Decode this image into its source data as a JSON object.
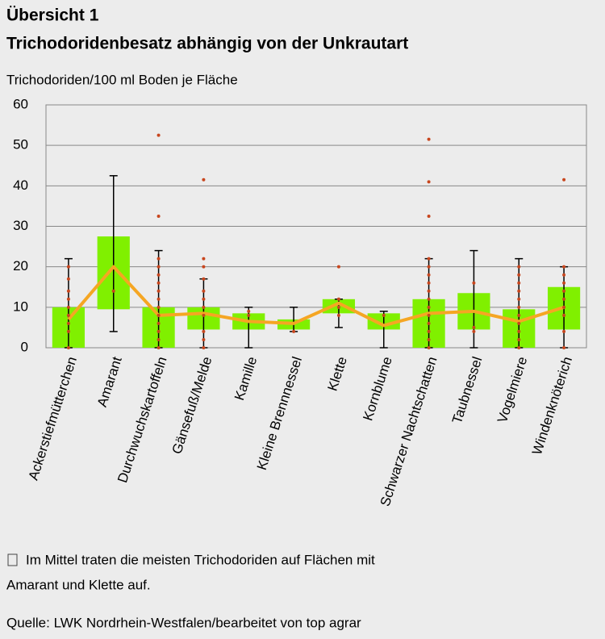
{
  "chart_data": {
    "type": "box",
    "title": "Übersicht 1",
    "subtitle": "Trichodoridenbesatz abhängig von der Unkrautart",
    "y_label": "Trichodoriden/100  ml Boden je Fläche",
    "categories": [
      "Ackerstiefmütterchen",
      "Amarant",
      "Durchwuchskartoffeln",
      "Gänsefuß/Melde",
      "Kamille",
      "Kleine Brennnessel",
      "Klette",
      "Kornblume",
      "Schwarzer Nachtschatten",
      "Taubnessel",
      "Vogelmiere",
      "Windenknöterich"
    ],
    "min": [
      0,
      4,
      0,
      0,
      0,
      4,
      5,
      0,
      0,
      0,
      0,
      0
    ],
    "q1": [
      0,
      9.5,
      0,
      4.5,
      4.5,
      4.5,
      8.5,
      4.5,
      0,
      4.5,
      0,
      4.5
    ],
    "q3": [
      10,
      27.5,
      10,
      10,
      8.5,
      7,
      12,
      8.5,
      12,
      13.5,
      9.5,
      15
    ],
    "max": [
      22,
      42.5,
      24,
      17,
      10,
      10,
      12,
      9,
      22,
      24,
      22,
      20
    ],
    "mean": [
      7,
      20,
      8,
      8.5,
      6.5,
      6,
      11,
      5.5,
      8.5,
      9,
      6.5,
      10
    ],
    "points": [
      [
        20,
        17,
        14,
        12,
        10,
        8,
        6,
        4,
        0
      ],
      [
        14
      ],
      [
        52.5,
        32.5,
        22,
        20,
        18,
        16,
        14,
        12,
        10,
        8,
        6,
        4,
        2,
        0
      ],
      [
        41.5,
        22,
        20,
        17,
        14,
        12,
        10,
        8,
        4,
        2,
        0
      ],
      [
        9,
        8
      ],
      [
        4
      ],
      [
        20,
        12,
        10,
        8
      ],
      [
        8
      ],
      [
        51.5,
        41,
        32.5,
        22,
        20,
        18,
        16,
        14,
        12,
        10,
        8,
        6,
        4,
        2,
        0
      ],
      [
        16,
        5,
        4
      ],
      [
        20,
        18,
        16,
        14,
        12,
        10,
        8,
        6,
        4,
        2,
        0
      ],
      [
        41.5,
        20,
        18,
        16,
        14,
        12,
        10,
        8,
        4,
        0
      ]
    ],
    "box_color": "#80f000",
    "mean_color": "#f5a623",
    "point_color": "#c8461e",
    "whisker_color": "#000000",
    "ylim": [
      0,
      60
    ],
    "yticks": [
      0,
      10,
      20,
      30,
      40,
      50,
      60
    ],
    "grid": true,
    "note": [
      "Im Mittel  traten die meisten Trichodoriden auf Flächen mit",
      "Amarant und Klette auf."
    ],
    "source": "Quelle: LWK Nordrhein-Westfalen/bearbeitet von top  agrar"
  }
}
